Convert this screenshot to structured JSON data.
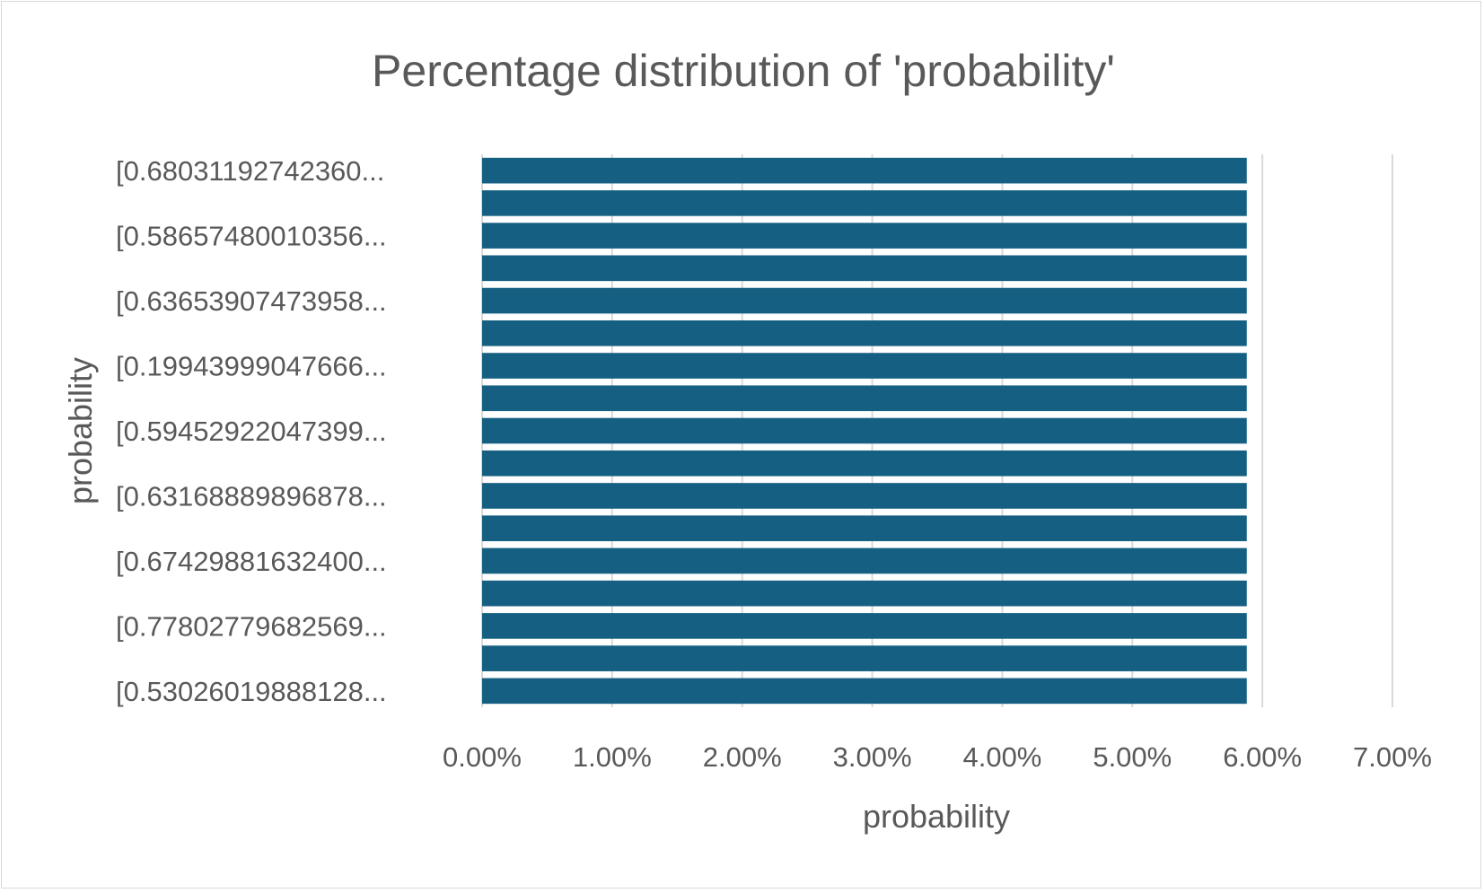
{
  "chart_data": {
    "type": "bar",
    "orientation": "horizontal",
    "title": "Percentage distribution of 'probability'",
    "xlabel": "probability",
    "ylabel": "probability",
    "xlim": [
      0,
      0.07
    ],
    "x_ticks": [
      "0.00%",
      "1.00%",
      "2.00%",
      "3.00%",
      "4.00%",
      "5.00%",
      "6.00%",
      "7.00%"
    ],
    "x_tick_values": [
      0,
      0.01,
      0.02,
      0.03,
      0.04,
      0.05,
      0.06,
      0.07
    ],
    "grid": true,
    "legend": "none",
    "bar_color": "#156082",
    "bar_count": 17,
    "values": [
      0.0588,
      0.0588,
      0.0588,
      0.0588,
      0.0588,
      0.0588,
      0.0588,
      0.0588,
      0.0588,
      0.0588,
      0.0588,
      0.0588,
      0.0588,
      0.0588,
      0.0588,
      0.0588,
      0.0588
    ],
    "category_labels_shown": [
      "[0.68031192742360...",
      "[0.58657480010356...",
      "[0.63653907473958...",
      "[0.19943999047666...",
      "[0.59452922047399...",
      "[0.63168889896878...",
      "[0.67429881632400...",
      "[0.77802779682569...",
      "[0.53026019888128..."
    ]
  }
}
